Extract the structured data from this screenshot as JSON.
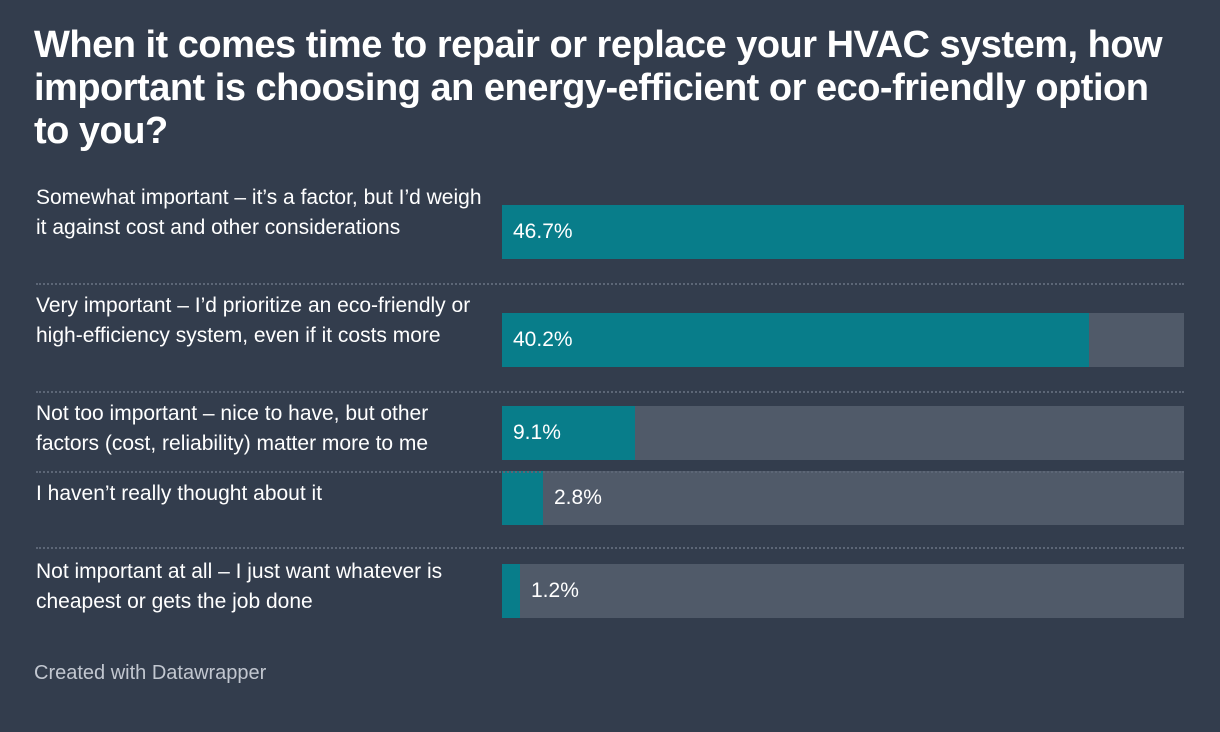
{
  "chart_data": {
    "type": "bar",
    "orientation": "horizontal",
    "title": "When it comes time to repair or replace your HVAC system, how important is choosing an energy-efficient or eco-friendly option to you?",
    "categories": [
      "Somewhat important – it’s a factor, but I’d weigh it against cost and other considerations",
      "Very important – I’d prioritize an eco-friendly or high-efficiency system, even if it costs more",
      "Not too important – nice to have, but other factors (cost, reliability) matter more to me",
      "I haven’t really thought about it",
      "Not important at all – I just want whatever is cheapest or gets the job done"
    ],
    "values": [
      46.7,
      40.2,
      9.1,
      2.8,
      1.2
    ],
    "value_labels": [
      "46.7%",
      "40.2%",
      "9.1%",
      "2.8%",
      "1.2%"
    ],
    "xlim": [
      0,
      46.7
    ],
    "grid": false,
    "colors": {
      "bar": "#087d8a",
      "track": "#505a69",
      "background": "#333d4d"
    }
  },
  "footer": "Created with Datawrapper"
}
